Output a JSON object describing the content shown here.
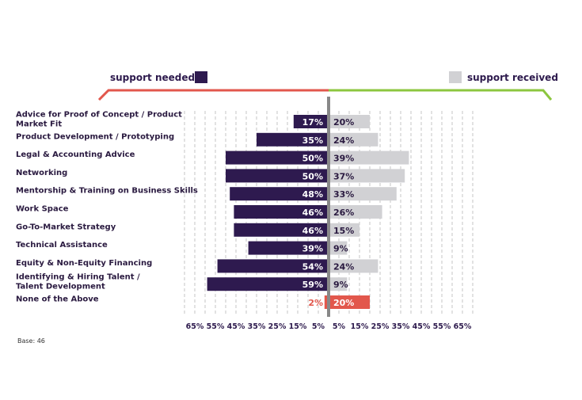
{
  "chart_data": {
    "type": "bar",
    "orientation": "horizontal-diverging",
    "legend": {
      "left": "support needed",
      "right": "support received"
    },
    "colors": {
      "needed": "#2e1a4f",
      "received": "#d1d1d4",
      "none_needed": "#e2574c",
      "none_received": "#e2574c",
      "bracket_left": "#e2574c",
      "bracket_right": "#8cc63f",
      "axis": "#888888",
      "grid": "#cfcfcf"
    },
    "categories": [
      "Advice for Proof of Concept / Product Market Fit",
      "Product Development /  Prototyping",
      "Legal & Accounting Advice",
      "Networking",
      "Mentorship & Training on Business Skills",
      "Work Space",
      "Go-To-Market Strategy",
      "Technical Assistance",
      "Equity & Non-Equity Financing",
      "Identifying & Hiring Talent / Talent Development",
      "None of the Above"
    ],
    "category_lines": [
      [
        "Advice for Proof of Concept / Product",
        "Market Fit"
      ],
      [
        "Product Development /  Prototyping"
      ],
      [
        "Legal & Accounting Advice"
      ],
      [
        "Networking"
      ],
      [
        "Mentorship & Training on Business Skills"
      ],
      [
        "Work Space"
      ],
      [
        "Go-To-Market Strategy"
      ],
      [
        "Technical Assistance"
      ],
      [
        "Equity & Non-Equity Financing"
      ],
      [
        "Identifying & Hiring Talent /",
        "Talent Development"
      ],
      [
        "None of the Above"
      ]
    ],
    "series": [
      {
        "name": "support needed",
        "values": [
          17,
          35,
          50,
          50,
          48,
          46,
          46,
          39,
          54,
          59,
          2
        ]
      },
      {
        "name": "support received",
        "values": [
          20,
          24,
          39,
          37,
          33,
          26,
          15,
          9,
          24,
          9,
          20
        ]
      }
    ],
    "unit": "%",
    "xticks_left": [
      "65%",
      "55%",
      "45%",
      "35%",
      "25%",
      "15%",
      "5%"
    ],
    "xticks_right": [
      "5%",
      "15%",
      "25%",
      "35%",
      "45%",
      "55%",
      "65%"
    ],
    "tick_values": [
      5,
      15,
      25,
      35,
      45,
      55,
      65
    ],
    "grid": true
  },
  "note": "Base: 46"
}
